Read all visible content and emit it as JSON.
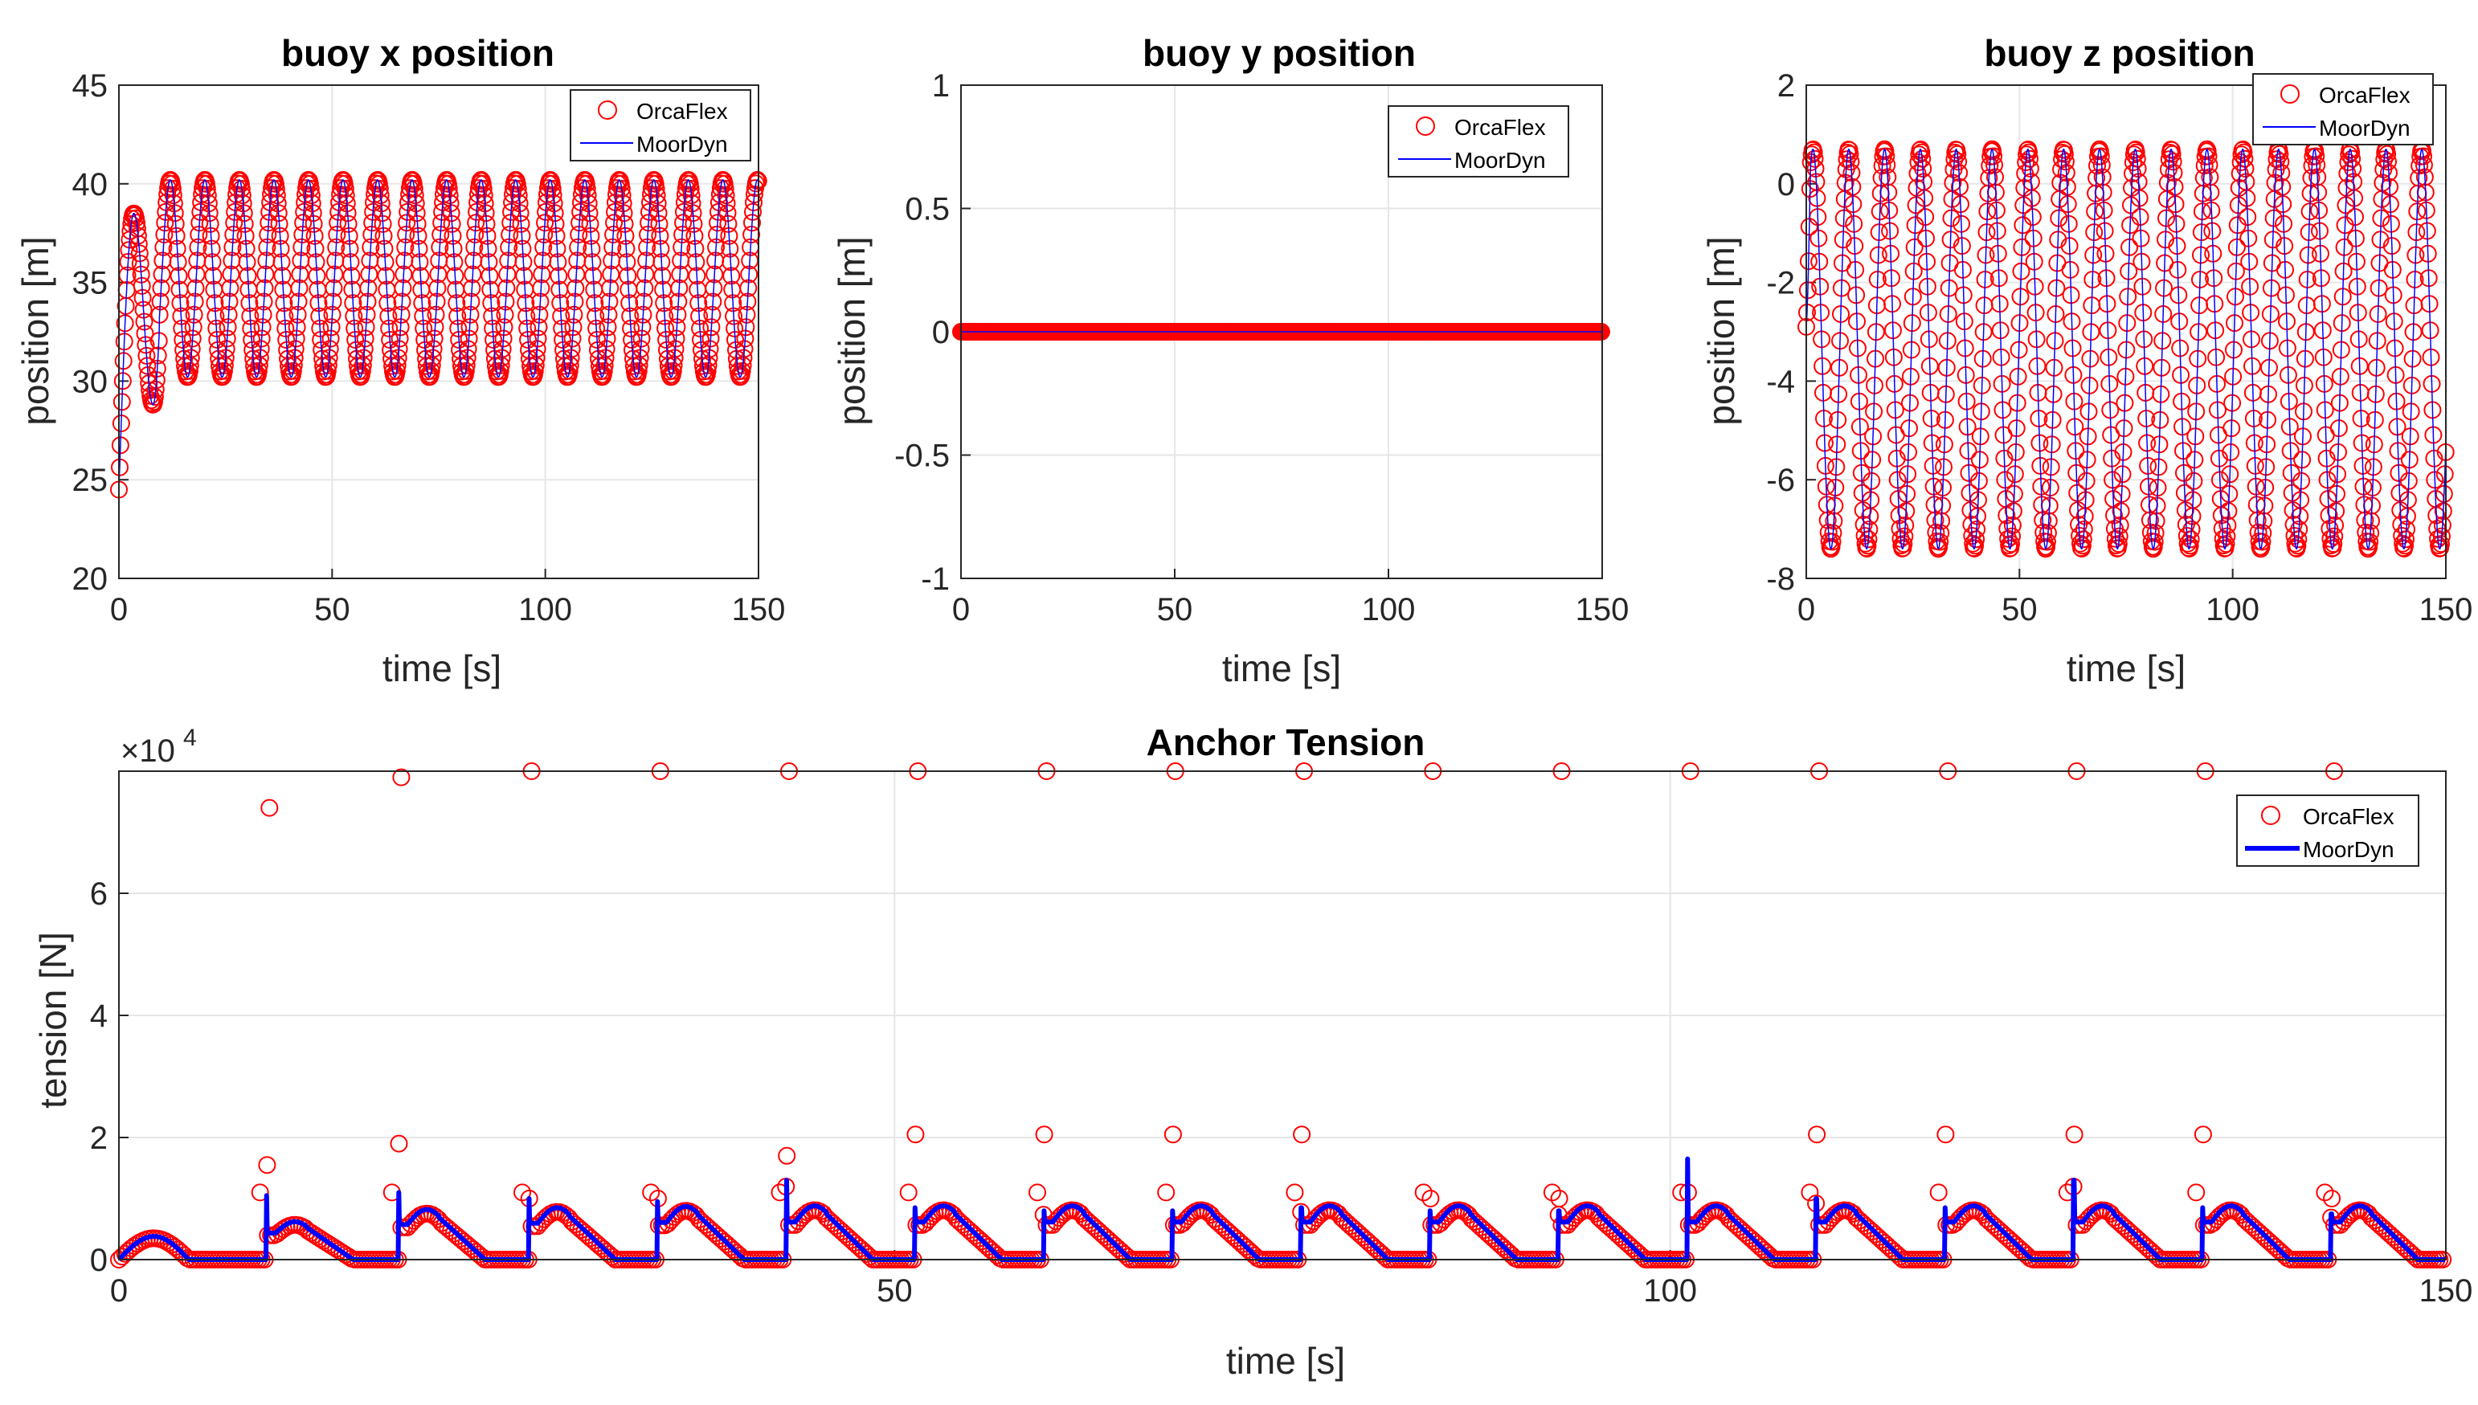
{
  "colors": {
    "orcaflex": "#ff0000",
    "moordyn": "#0000ff",
    "grid": "#e6e6e6",
    "axis": "#262626"
  },
  "chart_data": [
    {
      "id": "x",
      "type": "line",
      "title": "buoy x position",
      "xlabel": "time [s]",
      "ylabel": "position [m]",
      "xlim": [
        0,
        150
      ],
      "ylim": [
        20,
        45
      ],
      "xticks": [
        0,
        50,
        100,
        150
      ],
      "yticks": [
        20,
        25,
        30,
        35,
        40,
        45
      ],
      "xtick_labels": [
        "0",
        "50",
        "100",
        "150"
      ],
      "ytick_labels": [
        "20",
        "25",
        "30",
        "35",
        "40",
        "45"
      ],
      "grid": true,
      "legend": {
        "position": "top-right",
        "entries": [
          "OrcaFlex",
          "MoorDyn"
        ]
      },
      "signal": {
        "kind": "sine",
        "start": 24.5,
        "mean": 35.2,
        "amplitude": 5.0,
        "period": 8.1,
        "transient_end": 9.5,
        "first_peak": 38.5,
        "first_trough": 28.8
      },
      "series": [
        {
          "name": "OrcaFlex",
          "style": "circle-markers",
          "color": "#ff0000"
        },
        {
          "name": "MoorDyn",
          "style": "thin-line",
          "color": "#0000ff"
        }
      ]
    },
    {
      "id": "y",
      "type": "line",
      "title": "buoy y position",
      "xlabel": "time [s]",
      "ylabel": "position [m]",
      "xlim": [
        0,
        150
      ],
      "ylim": [
        -1,
        1
      ],
      "xticks": [
        0,
        50,
        100,
        150
      ],
      "yticks": [
        -1,
        -0.5,
        0,
        0.5,
        1
      ],
      "xtick_labels": [
        "0",
        "50",
        "100",
        "150"
      ],
      "ytick_labels": [
        "-1",
        "-0.5",
        "0",
        "0.5",
        "1"
      ],
      "grid": true,
      "legend": {
        "position": "top-right",
        "entries": [
          "OrcaFlex",
          "MoorDyn"
        ]
      },
      "signal": {
        "kind": "constant",
        "value": 0
      },
      "series": [
        {
          "name": "OrcaFlex",
          "style": "circle-markers",
          "color": "#ff0000"
        },
        {
          "name": "MoorDyn",
          "style": "thin-line",
          "color": "#0000ff"
        }
      ]
    },
    {
      "id": "z",
      "type": "line",
      "title": "buoy z position",
      "xlabel": "time [s]",
      "ylabel": "position [m]",
      "xlim": [
        0,
        150
      ],
      "ylim": [
        -8,
        2
      ],
      "xticks": [
        0,
        50,
        100,
        150
      ],
      "yticks": [
        -8,
        -6,
        -4,
        -2,
        0,
        2
      ],
      "xtick_labels": [
        "0",
        "50",
        "100",
        "150"
      ],
      "ytick_labels": [
        "-8",
        "-6",
        "-4",
        "-2",
        "0",
        "2"
      ],
      "grid": true,
      "legend": {
        "position": "top-right",
        "entries": [
          "OrcaFlex",
          "MoorDyn"
        ]
      },
      "signal": {
        "kind": "sine",
        "start": -2.9,
        "mean": -3.35,
        "amplitude": 4.05,
        "period": 8.4,
        "phase": 1.5
      },
      "series": [
        {
          "name": "OrcaFlex",
          "style": "circle-markers",
          "color": "#ff0000"
        },
        {
          "name": "MoorDyn",
          "style": "thin-line",
          "color": "#0000ff"
        }
      ]
    },
    {
      "id": "t",
      "type": "line",
      "title": "Anchor Tension",
      "xlabel": "time [s]",
      "ylabel": "tension [N]",
      "multiplier": "×10",
      "multiplier_exp": "4",
      "xlim": [
        0,
        150
      ],
      "ylim": [
        0,
        80000
      ],
      "xticks": [
        0,
        50,
        100,
        150
      ],
      "yticks": [
        0,
        20000,
        40000,
        60000
      ],
      "xtick_labels": [
        "0",
        "50",
        "100",
        "150"
      ],
      "ytick_labels": [
        "0",
        "2",
        "4",
        "6"
      ],
      "grid": true,
      "legend": {
        "position": "top-right",
        "entries": [
          "OrcaFlex",
          "MoorDyn"
        ]
      },
      "initial_hump": {
        "t_end": 4.5,
        "peak": 3800
      },
      "pulses": [
        {
          "t": 9.5,
          "spike": 10500,
          "peak": 6200,
          "orca_spike": 15500,
          "orca_outlier": 74000
        },
        {
          "t": 18.0,
          "spike": 11000,
          "peak": 8200,
          "orca_spike": 19000,
          "orca_outlier": 79000
        },
        {
          "t": 26.4,
          "spike": 10000,
          "peak": 8500,
          "orca_spike": 10000,
          "orca_outlier": 80000
        },
        {
          "t": 34.7,
          "spike": 9500,
          "peak": 8700,
          "orca_spike": 10000,
          "orca_outlier": 80000
        },
        {
          "t": 43.0,
          "spike": 13000,
          "peak": 8800,
          "orca_spike": 17000,
          "orca_outlier": 80000
        },
        {
          "t": 51.3,
          "spike": 8500,
          "peak": 8800,
          "orca_spike": 20500,
          "orca_outlier": 80000
        },
        {
          "t": 59.6,
          "spike": 8000,
          "peak": 8800,
          "orca_spike": 20500,
          "orca_outlier": 80000
        },
        {
          "t": 67.9,
          "spike": 8000,
          "peak": 8800,
          "orca_spike": 20500,
          "orca_outlier": 80000
        },
        {
          "t": 76.2,
          "spike": 8500,
          "peak": 8800,
          "orca_spike": 20500,
          "orca_outlier": 80000
        },
        {
          "t": 84.5,
          "spike": 8000,
          "peak": 8800,
          "orca_spike": 10000,
          "orca_outlier": 80000
        },
        {
          "t": 92.8,
          "spike": 8000,
          "peak": 8800,
          "orca_spike": 10000,
          "orca_outlier": 80000
        },
        {
          "t": 101.1,
          "spike": 16500,
          "peak": 8800,
          "orca_spike": 11000,
          "orca_outlier": 80000
        },
        {
          "t": 109.4,
          "spike": 10000,
          "peak": 8800,
          "orca_spike": 20500,
          "orca_outlier": 80000
        },
        {
          "t": 117.7,
          "spike": 8500,
          "peak": 8800,
          "orca_spike": 20500,
          "orca_outlier": 80000
        },
        {
          "t": 126.0,
          "spike": 13000,
          "peak": 8800,
          "orca_spike": 20500,
          "orca_outlier": 80000
        },
        {
          "t": 134.3,
          "spike": 8500,
          "peak": 8800,
          "orca_spike": 20500,
          "orca_outlier": 80000
        },
        {
          "t": 142.6,
          "spike": 7500,
          "peak": 8800,
          "orca_spike": 10000,
          "orca_outlier": 80000
        }
      ],
      "pulse_shape": {
        "rise_duration": 0.6,
        "flat_duration": 2.0,
        "decay_duration": 3.0
      },
      "series": [
        {
          "name": "OrcaFlex",
          "style": "circle-markers",
          "color": "#ff0000"
        },
        {
          "name": "MoorDyn",
          "style": "thick-line",
          "color": "#0000ff"
        }
      ]
    }
  ]
}
